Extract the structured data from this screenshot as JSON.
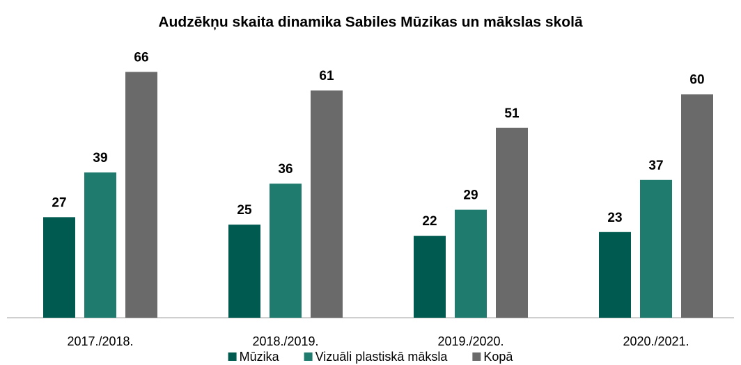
{
  "chart_data": {
    "type": "bar",
    "title": "Audzēkņu skaita dinamika Sabiles Mūzikas un mākslas skolā",
    "categories": [
      "2017./2018.",
      "2018./2019.",
      "2019./2020.",
      "2020./2021."
    ],
    "series": [
      {
        "name": "Mūzika",
        "color": "#005a4f",
        "values": [
          27,
          25,
          22,
          23
        ]
      },
      {
        "name": "Vizuāli plastiskā māksla",
        "color": "#1f7b6e",
        "values": [
          39,
          36,
          29,
          37
        ]
      },
      {
        "name": "Kopā",
        "color": "#6a6a6a",
        "values": [
          66,
          61,
          51,
          60
        ]
      }
    ],
    "ylim": [
      0,
      70
    ],
    "legend": "bottom"
  }
}
